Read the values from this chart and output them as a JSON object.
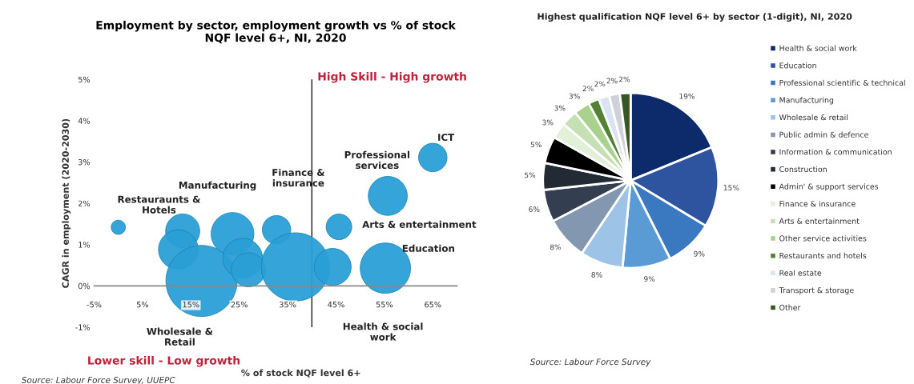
{
  "chart_data": [
    {
      "type": "bubble",
      "title": "Employment by sector, employment growth vs % of stock\nNQF level 6+, NI, 2020",
      "xlabel": "% of stock NQF level 6+",
      "ylabel": "CAGR in employment (2020-2030)",
      "x": [
        0,
        13.3,
        12.4,
        17.2,
        23.6,
        25.7,
        26.9,
        32.7,
        36.6,
        44.3,
        45.6,
        55.7,
        55.2,
        65
      ],
      "series": [
        {
          "color": "#2a9fd6",
          "values": [
            1.42,
            1.33,
            0.88,
            0.12,
            1.26,
            0.67,
            0.39,
            1.36,
            0.46,
            0.46,
            1.43,
            2.18,
            0.43,
            3.11
          ],
          "sizes": [
            0.04,
            0.23,
            0.31,
            1,
            0.36,
            0.31,
            0.23,
            0.16,
            0.92,
            0.27,
            0.13,
            0.3,
            0.5,
            0.16
          ]
        }
      ],
      "xlim": [
        -5,
        70
      ],
      "ylim": [
        -1,
        5
      ],
      "xticks": [
        {
          "value": -5,
          "label": "-5%"
        },
        {
          "value": 5,
          "label": "5%"
        },
        {
          "value": 15,
          "label": "15%"
        },
        {
          "value": 25,
          "label": "25%"
        },
        {
          "value": 35,
          "label": "35%"
        },
        {
          "value": 45,
          "label": "45%"
        },
        {
          "value": 55,
          "label": "55%"
        },
        {
          "value": 65,
          "label": "65%"
        }
      ],
      "yticks": [
        {
          "value": -1,
          "label": "-1%"
        },
        {
          "value": 0,
          "label": "0%"
        },
        {
          "value": 1,
          "label": "1%"
        },
        {
          "value": 2,
          "label": "2%"
        },
        {
          "value": 3,
          "label": "3%"
        },
        {
          "value": 4,
          "label": "4%"
        },
        {
          "value": 5,
          "label": "5%"
        }
      ],
      "ref_lines": [
        {
          "axis": "x",
          "value": 40,
          "color": "#000000"
        }
      ],
      "grid": false,
      "legend": false,
      "annotations": [
        "High Skill - High growth",
        "Lower skill - Low growth",
        "Restauraunts &\nHotels",
        "Manufacturing",
        "Finance &\ninsurance",
        "Professional\nservices",
        "ICT",
        "Arts & entertainment",
        "Education",
        "Health & social\nwork",
        "Wholesale &\nRetail",
        "Source: Labour Force Survey, UUEPC"
      ]
    },
    {
      "type": "pie",
      "title": "Highest qualification NQF level 6+ by sector (1-digit), NI, 2020",
      "categories": [
        "Health & social work",
        "Education",
        "Professional scientific & technical",
        "Manufacturing",
        "Wholesale & retail",
        "Public admin & defence",
        "Information & communication",
        "Construction",
        "Admin' & support services",
        "Finance & insurance",
        "Arts & entertainment",
        "Other service activities",
        "Restaurants and hotels",
        "Real estate",
        "Transport & storage",
        "Other"
      ],
      "values": [
        19,
        15,
        9,
        9,
        8,
        8,
        6,
        5,
        5,
        3,
        3,
        3,
        2,
        2,
        2,
        2
      ],
      "value_labels": [
        "19%",
        "15%",
        "9%",
        "9%",
        "8%",
        "8%",
        "6%",
        "5%",
        "5%",
        "3%",
        "3%",
        "3%",
        "2%",
        "2%",
        "2%",
        "2%"
      ],
      "colors": [
        "#0d2a6b",
        "#2e54a0",
        "#3a78c0",
        "#5b9bd5",
        "#9dc3e6",
        "#8497b0",
        "#333f50",
        "#222a35",
        "#000000",
        "#e2efd9",
        "#c5e0b4",
        "#a9d18e",
        "#548235",
        "#dae3f3",
        "#d0d0d8",
        "#375623"
      ],
      "legend": "right",
      "annotations": [
        "Source: Labour Force Survey"
      ]
    }
  ]
}
